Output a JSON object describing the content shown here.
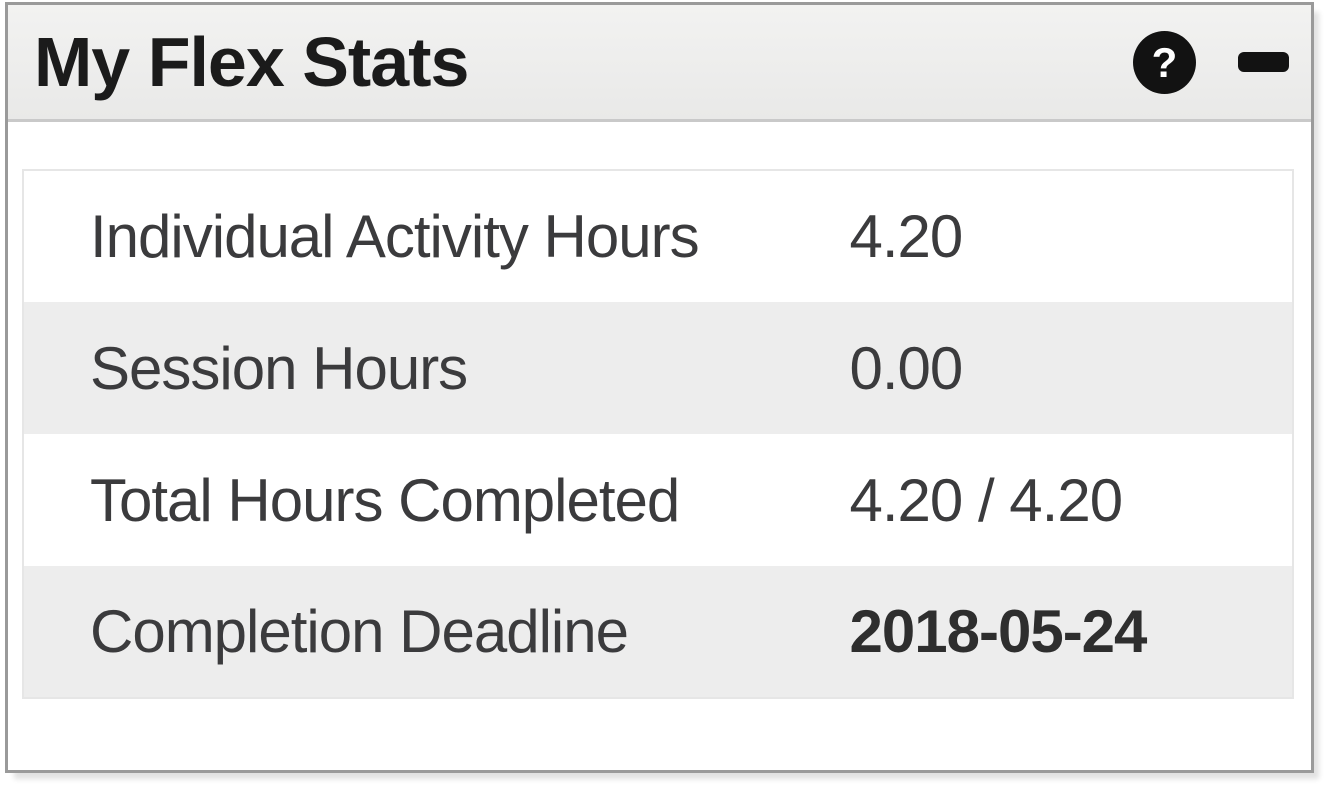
{
  "widget": {
    "title": "My Flex Stats",
    "help_glyph": "?",
    "colors": {
      "panel_border": "#9a9a9a",
      "header_bg_top": "#f2f2f1",
      "header_bg_bottom": "#e9e9e8",
      "header_border": "#c9c9c9",
      "row_alt_bg": "#ededed",
      "table_border": "#e6e6e6",
      "text": "#3b3b3d",
      "title_text": "#1b1b1b",
      "icon_bg": "#121212",
      "icon_fg": "#ffffff"
    }
  },
  "stats": {
    "rows": [
      {
        "label": "Individual Activity Hours",
        "value": "4.20",
        "bold_value": false
      },
      {
        "label": "Session Hours",
        "value": "0.00",
        "bold_value": false
      },
      {
        "label": "Total Hours Completed",
        "value": "4.20 / 4.20",
        "bold_value": false
      },
      {
        "label": "Completion Deadline",
        "value": "2018-05-24",
        "bold_value": true
      }
    ]
  }
}
